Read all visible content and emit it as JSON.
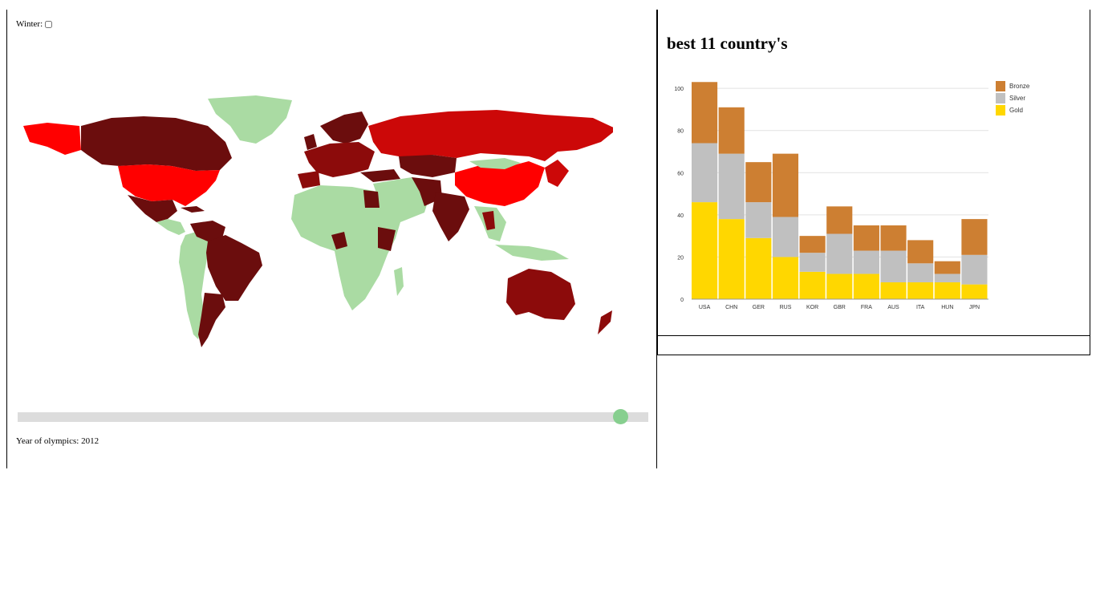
{
  "controls": {
    "winter_label": "Winter:",
    "year_label": "Year of olympics: 2012",
    "slider_value": 2012,
    "slider_fraction": 0.957
  },
  "colors": {
    "background_land": "#aadba3",
    "medal_dark": "#6b0d0d",
    "medal_mid": "#8c0b0b",
    "medal_high": "#cc0808",
    "medal_top": "#ff0000",
    "bronze": "#cd7f32",
    "silver": "#c0c0c0",
    "gold": "#ffd700"
  },
  "chart_data": {
    "type": "bar",
    "stacked": true,
    "title": "best 11 country's",
    "categories": [
      "USA",
      "CHN",
      "GER",
      "RUS",
      "KOR",
      "GBR",
      "FRA",
      "AUS",
      "ITA",
      "HUN",
      "JPN"
    ],
    "series": [
      {
        "name": "Gold",
        "values": [
          46,
          38,
          29,
          20,
          13,
          12,
          12,
          8,
          8,
          8,
          7
        ],
        "color": "#ffd700"
      },
      {
        "name": "Silver",
        "values": [
          28,
          31,
          17,
          19,
          9,
          19,
          11,
          15,
          9,
          4,
          14
        ],
        "color": "#c0c0c0"
      },
      {
        "name": "Bronze",
        "values": [
          29,
          22,
          19,
          30,
          8,
          13,
          12,
          12,
          11,
          6,
          17
        ],
        "color": "#cd7f32"
      }
    ],
    "legend": [
      "Bronze",
      "Silver",
      "Gold"
    ],
    "ylim": [
      0,
      105
    ],
    "yticks": [
      0,
      20,
      40,
      60,
      80,
      100
    ],
    "xlabel": "",
    "ylabel": ""
  }
}
